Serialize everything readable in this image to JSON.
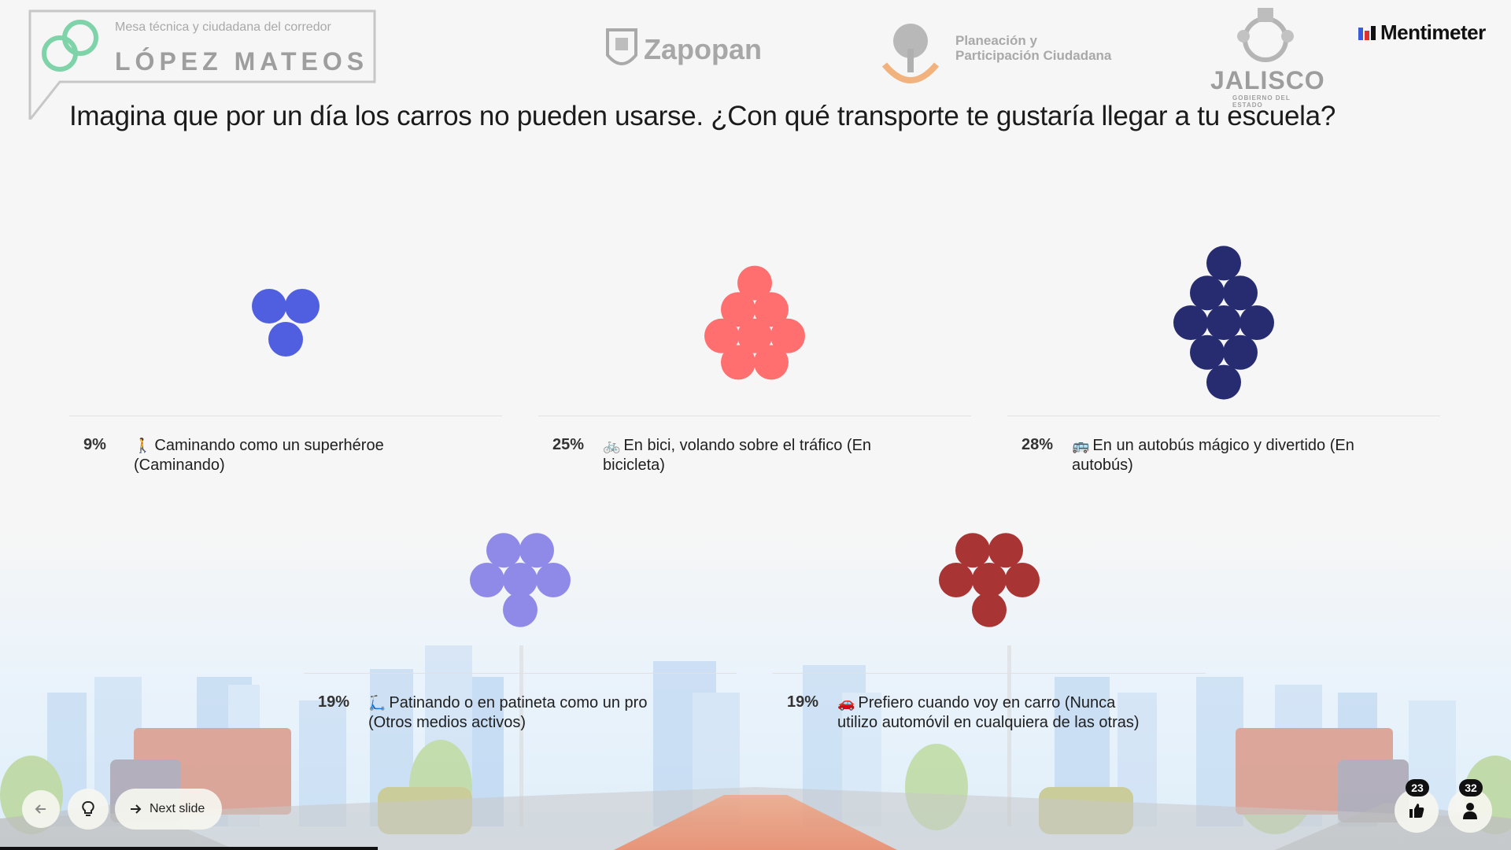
{
  "header": {
    "mesa_subtitle": "Mesa técnica y ciudadana del corredor",
    "mesa_title": "LÓPEZ MATEOS",
    "zapopan": "Zapopan",
    "planeacion_line1": "Planeación y",
    "planeacion_line2": "Participación Ciudadana",
    "jalisco": "JALISCO",
    "jalisco_sub": "GOBIERNO DEL ESTADO",
    "brand": "Mentimeter"
  },
  "question": "Imagina que por un día los carros no pueden usarse. ¿Con qué transporte te gustaría llegar a tu escuela?",
  "results": [
    {
      "percent": "9%",
      "emoji": "🚶",
      "label": "Caminando como un superhéroe (Caminando)",
      "dots": 3,
      "color": "#4f5fe0"
    },
    {
      "percent": "25%",
      "emoji": "🚲",
      "label": "En bici, volando sobre el tráfico (En bicicleta)",
      "dots": 8,
      "color": "#ff6f6f"
    },
    {
      "percent": "28%",
      "emoji": "🚌",
      "label": "En un autobús mágico y divertido (En autobús)",
      "dots": 9,
      "color": "#272c70"
    },
    {
      "percent": "19%",
      "emoji": "🛴",
      "label": "Patinando o en patineta como un pro (Otros medios activos)",
      "dots": 6,
      "color": "#8f8ae8"
    },
    {
      "percent": "19%",
      "emoji": "🚗",
      "label": "Prefiero cuando voy en carro (Nunca utilizo automóvil en cualquiera de las otras)",
      "dots": 6,
      "color": "#a83434"
    }
  ],
  "controls": {
    "next_label": "Next slide",
    "reactions_count": "23",
    "participants_count": "32"
  }
}
